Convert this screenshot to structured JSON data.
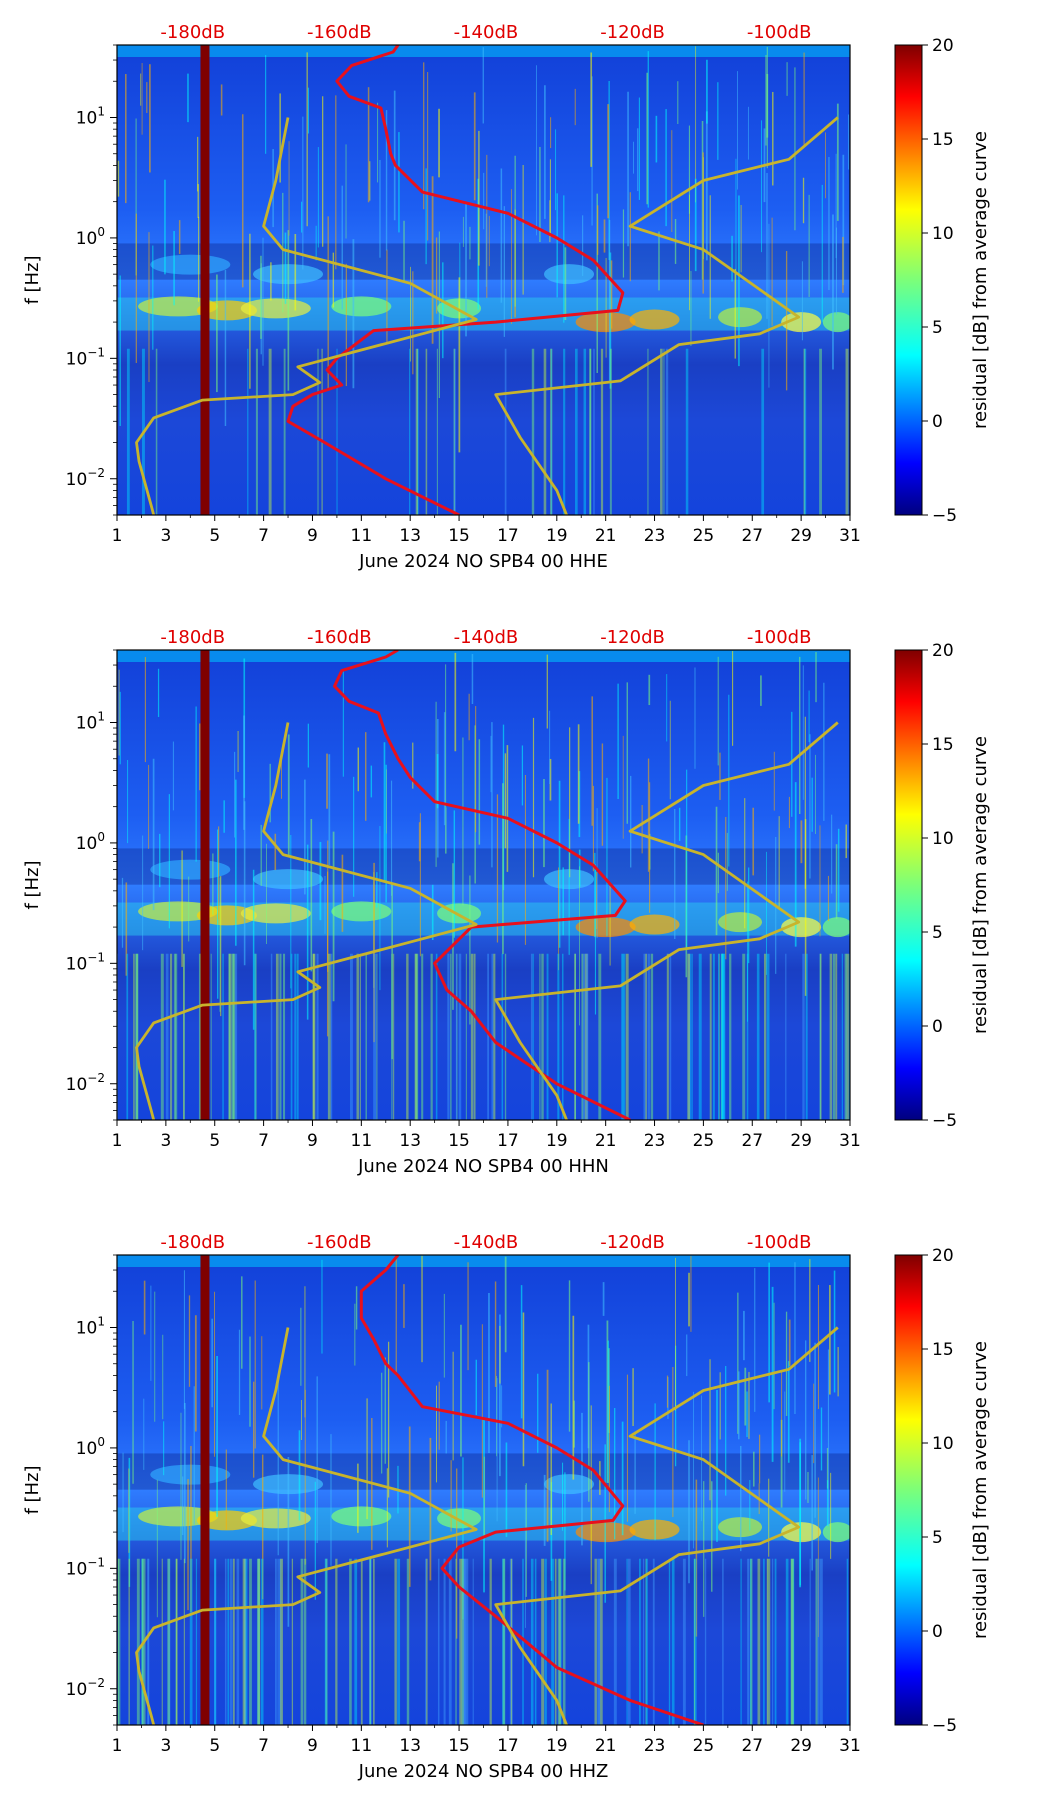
{
  "chart_data": [
    {
      "type": "heatmap",
      "xlabel": "June 2024 NO SPB4 00 HHE",
      "ylabel": "f [Hz]",
      "xlim": [
        1,
        31
      ],
      "ylim_hz": [
        0.005,
        40
      ],
      "x_ticks": [
        "1",
        "3",
        "5",
        "7",
        "9",
        "11",
        "13",
        "15",
        "17",
        "19",
        "21",
        "23",
        "25",
        "27",
        "29",
        "31"
      ],
      "y_ticks": [
        {
          "value": 0.01,
          "base": "10",
          "exp": "−2"
        },
        {
          "value": 0.1,
          "base": "10",
          "exp": "−1"
        },
        {
          "value": 1,
          "base": "10",
          "exp": "0"
        },
        {
          "value": 10,
          "base": "10",
          "exp": "1"
        }
      ],
      "top_db_labels": [
        {
          "label": "-180dB",
          "day": 4.1
        },
        {
          "label": "-160dB",
          "day": 10.1
        },
        {
          "label": "-140dB",
          "day": 16.1
        },
        {
          "label": "-120dB",
          "day": 22.1
        },
        {
          "label": "-100dB",
          "day": 28.1
        }
      ],
      "colorbar": {
        "label": "residual [dB] from average curve",
        "min": -5,
        "max": 20,
        "ticks": [
          "−5",
          "0",
          "5",
          "10",
          "15",
          "20"
        ]
      },
      "outage_day": 4.6,
      "series": [
        {
          "name": "median noise (red)",
          "color": "#e8101c",
          "points": [
            [
              12.5,
              40
            ],
            [
              12.3,
              35
            ],
            [
              10.6,
              27
            ],
            [
              10.0,
              20
            ],
            [
              10.5,
              15
            ],
            [
              11.8,
              12
            ],
            [
              12.0,
              8
            ],
            [
              12.2,
              5
            ],
            [
              12.4,
              4
            ],
            [
              13.5,
              2.4
            ],
            [
              17.0,
              1.6
            ],
            [
              19.0,
              1.0
            ],
            [
              20.5,
              0.65
            ],
            [
              21.7,
              0.35
            ],
            [
              21.5,
              0.25
            ],
            [
              16.5,
              0.2
            ],
            [
              11.5,
              0.17
            ],
            [
              10.0,
              0.1
            ],
            [
              9.6,
              0.08
            ],
            [
              10.2,
              0.06
            ],
            [
              9.0,
              0.05
            ],
            [
              8.2,
              0.04
            ],
            [
              8.0,
              0.03
            ],
            [
              9.5,
              0.02
            ],
            [
              12.0,
              0.01
            ],
            [
              15.0,
              0.005
            ]
          ]
        },
        {
          "name": "NLNM (yellow)",
          "color": "#c8b42c",
          "points": [
            [
              8.0,
              10
            ],
            [
              7.5,
              3.0
            ],
            [
              7.0,
              1.25
            ],
            [
              7.8,
              0.8
            ],
            [
              13.0,
              0.42
            ],
            [
              15.7,
              0.21
            ],
            [
              13.5,
              0.16
            ],
            [
              8.4,
              0.085
            ],
            [
              9.3,
              0.063
            ],
            [
              8.2,
              0.05
            ],
            [
              4.5,
              0.045
            ],
            [
              2.5,
              0.032
            ],
            [
              1.8,
              0.02
            ],
            [
              1.9,
              0.014
            ],
            [
              2.4,
              0.006
            ],
            [
              2.5,
              0.005
            ]
          ]
        },
        {
          "name": "NHNM (yellow)",
          "color": "#c8b42c",
          "points": [
            [
              30.5,
              10
            ],
            [
              28.5,
              4.5
            ],
            [
              25.0,
              3.0
            ],
            [
              22.0,
              1.25
            ],
            [
              25.0,
              0.8
            ],
            [
              28.9,
              0.22
            ],
            [
              27.3,
              0.16
            ],
            [
              24.0,
              0.13
            ],
            [
              21.6,
              0.065
            ],
            [
              16.5,
              0.05
            ],
            [
              17.5,
              0.022
            ],
            [
              19.0,
              0.008
            ],
            [
              19.4,
              0.005
            ]
          ]
        }
      ]
    },
    {
      "type": "heatmap",
      "xlabel": "June 2024 NO SPB4 00 HHN",
      "ylabel": "f [Hz]",
      "xlim": [
        1,
        31
      ],
      "ylim_hz": [
        0.005,
        40
      ],
      "x_ticks": [
        "1",
        "3",
        "5",
        "7",
        "9",
        "11",
        "13",
        "15",
        "17",
        "19",
        "21",
        "23",
        "25",
        "27",
        "29",
        "31"
      ],
      "y_ticks": [
        {
          "value": 0.01,
          "base": "10",
          "exp": "−2"
        },
        {
          "value": 0.1,
          "base": "10",
          "exp": "−1"
        },
        {
          "value": 1,
          "base": "10",
          "exp": "0"
        },
        {
          "value": 10,
          "base": "10",
          "exp": "1"
        }
      ],
      "top_db_labels": [
        {
          "label": "-180dB",
          "day": 4.1
        },
        {
          "label": "-160dB",
          "day": 10.1
        },
        {
          "label": "-140dB",
          "day": 16.1
        },
        {
          "label": "-120dB",
          "day": 22.1
        },
        {
          "label": "-100dB",
          "day": 28.1
        }
      ],
      "colorbar": {
        "label": "residual [dB] from average curve",
        "min": -5,
        "max": 20,
        "ticks": [
          "−5",
          "0",
          "5",
          "10",
          "15",
          "20"
        ]
      },
      "outage_day": 4.6,
      "series": [
        {
          "name": "median noise (red)",
          "color": "#e8101c",
          "points": [
            [
              12.5,
              40
            ],
            [
              12.0,
              35
            ],
            [
              10.2,
              27
            ],
            [
              9.9,
              20
            ],
            [
              10.5,
              15
            ],
            [
              11.7,
              12
            ],
            [
              12.0,
              8
            ],
            [
              12.5,
              5
            ],
            [
              13.0,
              3.5
            ],
            [
              14.0,
              2.2
            ],
            [
              17.0,
              1.6
            ],
            [
              19.0,
              1.0
            ],
            [
              20.5,
              0.65
            ],
            [
              21.8,
              0.33
            ],
            [
              21.4,
              0.25
            ],
            [
              15.5,
              0.2
            ],
            [
              14.0,
              0.1
            ],
            [
              14.5,
              0.06
            ],
            [
              15.5,
              0.04
            ],
            [
              16.5,
              0.022
            ],
            [
              19.0,
              0.01
            ],
            [
              22.0,
              0.005
            ]
          ]
        },
        {
          "name": "NLNM (yellow)",
          "color": "#c8b42c",
          "points": [
            [
              8.0,
              10
            ],
            [
              7.5,
              3.0
            ],
            [
              7.0,
              1.25
            ],
            [
              7.8,
              0.8
            ],
            [
              13.0,
              0.42
            ],
            [
              15.7,
              0.21
            ],
            [
              13.5,
              0.16
            ],
            [
              8.4,
              0.085
            ],
            [
              9.3,
              0.063
            ],
            [
              8.2,
              0.05
            ],
            [
              4.5,
              0.045
            ],
            [
              2.5,
              0.032
            ],
            [
              1.8,
              0.02
            ],
            [
              1.9,
              0.014
            ],
            [
              2.4,
              0.006
            ],
            [
              2.5,
              0.005
            ]
          ]
        },
        {
          "name": "NHNM (yellow)",
          "color": "#c8b42c",
          "points": [
            [
              30.5,
              10
            ],
            [
              28.5,
              4.5
            ],
            [
              25.0,
              3.0
            ],
            [
              22.0,
              1.25
            ],
            [
              25.0,
              0.8
            ],
            [
              28.9,
              0.22
            ],
            [
              27.3,
              0.16
            ],
            [
              24.0,
              0.13
            ],
            [
              21.6,
              0.065
            ],
            [
              16.5,
              0.05
            ],
            [
              17.5,
              0.022
            ],
            [
              19.0,
              0.008
            ],
            [
              19.4,
              0.005
            ]
          ]
        }
      ]
    },
    {
      "type": "heatmap",
      "xlabel": "June 2024 NO SPB4 00 HHZ",
      "ylabel": "f [Hz]",
      "xlim": [
        1,
        31
      ],
      "ylim_hz": [
        0.005,
        40
      ],
      "x_ticks": [
        "1",
        "3",
        "5",
        "7",
        "9",
        "11",
        "13",
        "15",
        "17",
        "19",
        "21",
        "23",
        "25",
        "27",
        "29",
        "31"
      ],
      "y_ticks": [
        {
          "value": 0.01,
          "base": "10",
          "exp": "−2"
        },
        {
          "value": 0.1,
          "base": "10",
          "exp": "−1"
        },
        {
          "value": 1,
          "base": "10",
          "exp": "0"
        },
        {
          "value": 10,
          "base": "10",
          "exp": "1"
        }
      ],
      "top_db_labels": [
        {
          "label": "-180dB",
          "day": 4.1
        },
        {
          "label": "-160dB",
          "day": 10.1
        },
        {
          "label": "-140dB",
          "day": 16.1
        },
        {
          "label": "-120dB",
          "day": 22.1
        },
        {
          "label": "-100dB",
          "day": 28.1
        }
      ],
      "colorbar": {
        "label": "residual [dB] from average curve",
        "min": -5,
        "max": 20,
        "ticks": [
          "−5",
          "0",
          "5",
          "10",
          "15",
          "20"
        ]
      },
      "outage_day": 4.6,
      "series": [
        {
          "name": "median noise (red)",
          "color": "#e8101c",
          "points": [
            [
              12.5,
              40
            ],
            [
              12.0,
              30
            ],
            [
              11.0,
              20
            ],
            [
              11.0,
              12
            ],
            [
              11.5,
              8
            ],
            [
              12.0,
              5
            ],
            [
              12.5,
              4
            ],
            [
              13.5,
              2.2
            ],
            [
              17.0,
              1.6
            ],
            [
              19.0,
              1.0
            ],
            [
              20.5,
              0.65
            ],
            [
              21.7,
              0.33
            ],
            [
              21.3,
              0.25
            ],
            [
              16.5,
              0.2
            ],
            [
              15.0,
              0.15
            ],
            [
              14.3,
              0.1
            ],
            [
              15.0,
              0.07
            ],
            [
              16.5,
              0.04
            ],
            [
              19.0,
              0.015
            ],
            [
              22.0,
              0.008
            ],
            [
              25.0,
              0.005
            ]
          ]
        },
        {
          "name": "NLNM (yellow)",
          "color": "#c8b42c",
          "points": [
            [
              8.0,
              10
            ],
            [
              7.5,
              3.0
            ],
            [
              7.0,
              1.25
            ],
            [
              7.8,
              0.8
            ],
            [
              13.0,
              0.42
            ],
            [
              15.7,
              0.21
            ],
            [
              13.5,
              0.16
            ],
            [
              8.4,
              0.085
            ],
            [
              9.3,
              0.063
            ],
            [
              8.2,
              0.05
            ],
            [
              4.5,
              0.045
            ],
            [
              2.5,
              0.032
            ],
            [
              1.8,
              0.02
            ],
            [
              1.9,
              0.014
            ],
            [
              2.4,
              0.006
            ],
            [
              2.5,
              0.005
            ]
          ]
        },
        {
          "name": "NHNM (yellow)",
          "color": "#c8b42c",
          "points": [
            [
              30.5,
              10
            ],
            [
              28.5,
              4.5
            ],
            [
              25.0,
              3.0
            ],
            [
              22.0,
              1.25
            ],
            [
              25.0,
              0.8
            ],
            [
              28.9,
              0.22
            ],
            [
              27.3,
              0.16
            ],
            [
              24.0,
              0.13
            ],
            [
              21.6,
              0.065
            ],
            [
              16.5,
              0.05
            ],
            [
              17.5,
              0.022
            ],
            [
              19.0,
              0.008
            ],
            [
              19.4,
              0.005
            ]
          ]
        }
      ]
    }
  ]
}
